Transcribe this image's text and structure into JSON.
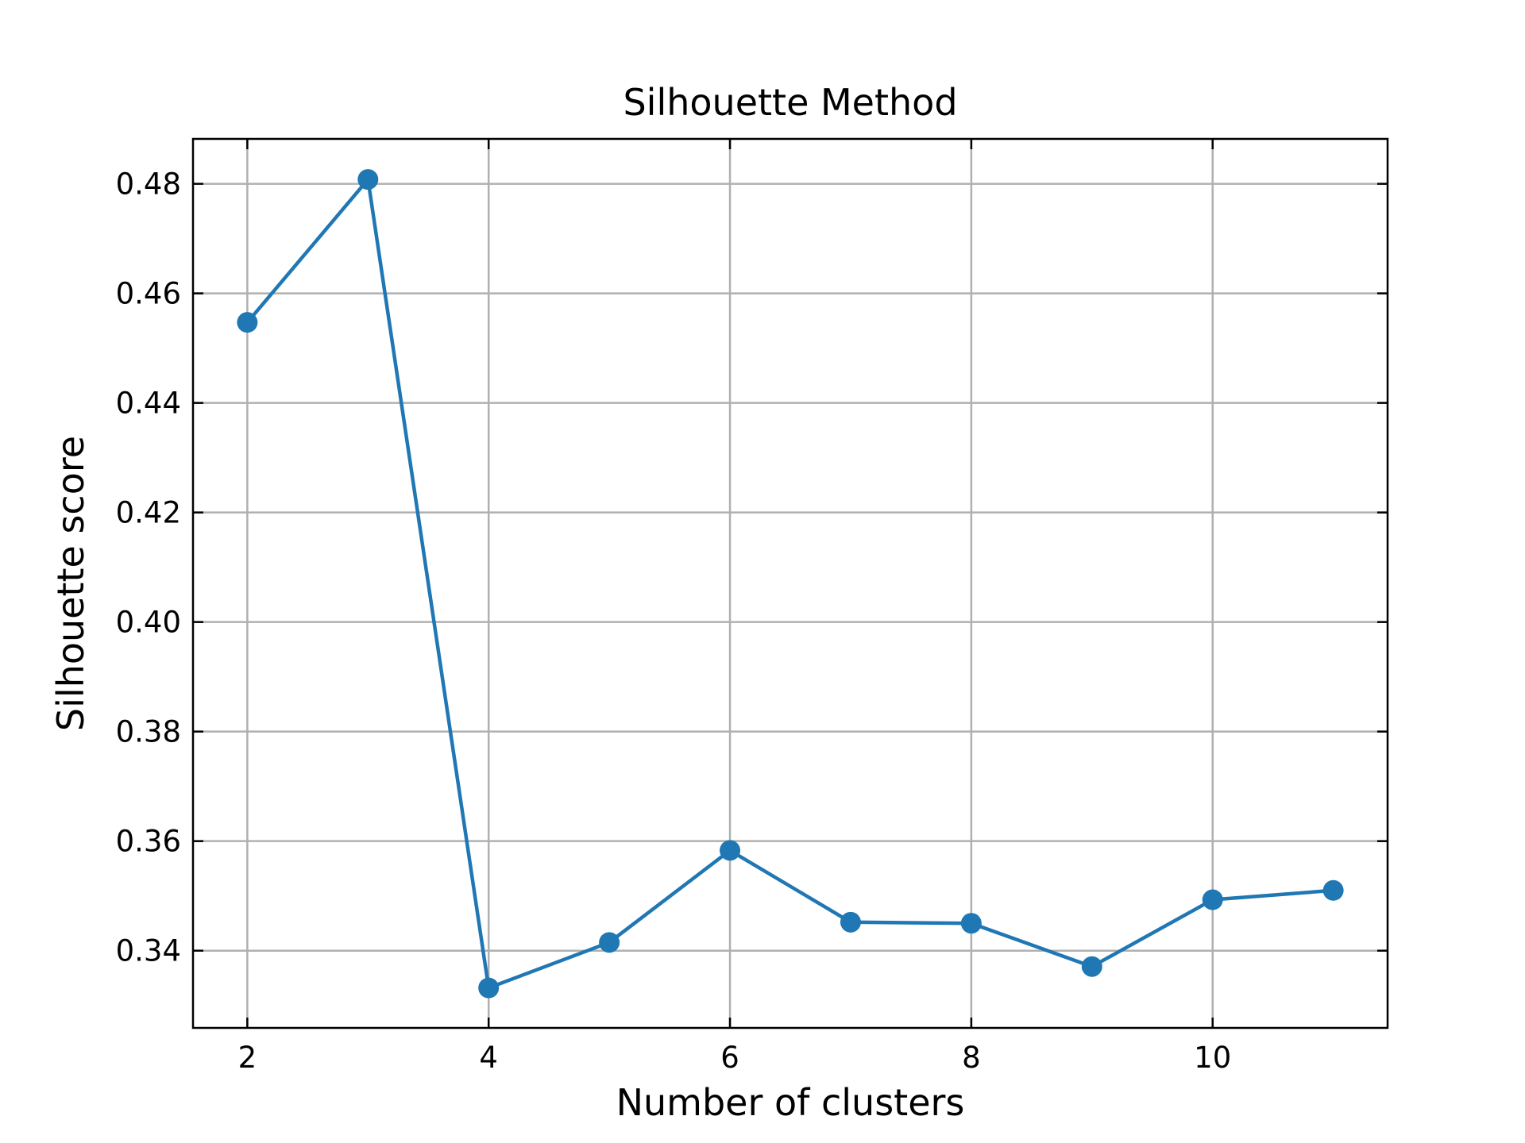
{
  "chart_data": {
    "type": "line",
    "title": "Silhouette Method",
    "xlabel": "Number of clusters",
    "ylabel": "Silhouette score",
    "x": [
      2,
      3,
      4,
      5,
      6,
      7,
      8,
      9,
      10,
      11
    ],
    "series": [
      {
        "name": "Silhouette score",
        "values": [
          0.4547,
          0.4808,
          0.3332,
          0.3415,
          0.3583,
          0.3452,
          0.345,
          0.3371,
          0.3493,
          0.351
        ],
        "color": "#1f77b4"
      }
    ],
    "xlim": [
      1.55,
      11.45
    ],
    "ylim": [
      0.3259,
      0.4882
    ],
    "xticks": [
      2,
      4,
      6,
      8,
      10
    ],
    "xtick_labels": [
      "2",
      "4",
      "6",
      "8",
      "10"
    ],
    "yticks": [
      0.34,
      0.36,
      0.38,
      0.4,
      0.42,
      0.44,
      0.46,
      0.48
    ],
    "ytick_labels": [
      "0.34",
      "0.36",
      "0.38",
      "0.40",
      "0.42",
      "0.44",
      "0.46",
      "0.48"
    ],
    "grid": true,
    "marker": "circle"
  }
}
